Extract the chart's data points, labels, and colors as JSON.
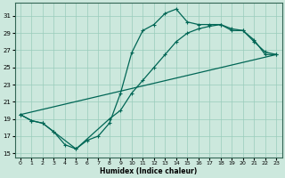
{
  "xlabel": "Humidex (Indice chaleur)",
  "bg_color": "#cce8dd",
  "grid_color": "#99ccbb",
  "line_color": "#006655",
  "xlim": [
    -0.5,
    23.5
  ],
  "ylim": [
    14.5,
    32.5
  ],
  "yticks": [
    15,
    17,
    19,
    21,
    23,
    25,
    27,
    29,
    31
  ],
  "xticks": [
    0,
    1,
    2,
    3,
    4,
    5,
    6,
    7,
    8,
    9,
    10,
    11,
    12,
    13,
    14,
    15,
    16,
    17,
    18,
    19,
    20,
    21,
    22,
    23
  ],
  "curve1_x": [
    0,
    1,
    2,
    3,
    4,
    5,
    6,
    7,
    8,
    9,
    10,
    11,
    12,
    13,
    14,
    15,
    16,
    17,
    18,
    19,
    20,
    21,
    22,
    23
  ],
  "curve1_y": [
    19.5,
    18.8,
    18.5,
    17.5,
    16.0,
    15.5,
    16.5,
    17.0,
    18.5,
    22.0,
    26.7,
    29.3,
    30.0,
    31.3,
    31.8,
    30.3,
    30.0,
    30.0,
    30.0,
    29.3,
    29.3,
    28.2,
    26.5,
    26.5
  ],
  "curve2_x": [
    0,
    1,
    2,
    3,
    5,
    8,
    9,
    10,
    11,
    12,
    13,
    14,
    15,
    16,
    17,
    18,
    19,
    20,
    21,
    22,
    23
  ],
  "curve2_y": [
    19.5,
    18.8,
    18.5,
    17.5,
    15.5,
    19.0,
    20.0,
    22.0,
    23.5,
    25.0,
    26.5,
    28.0,
    29.0,
    29.5,
    29.8,
    30.0,
    29.5,
    29.3,
    28.0,
    26.8,
    26.5
  ],
  "line3_x": [
    0,
    23
  ],
  "line3_y": [
    19.5,
    26.5
  ]
}
